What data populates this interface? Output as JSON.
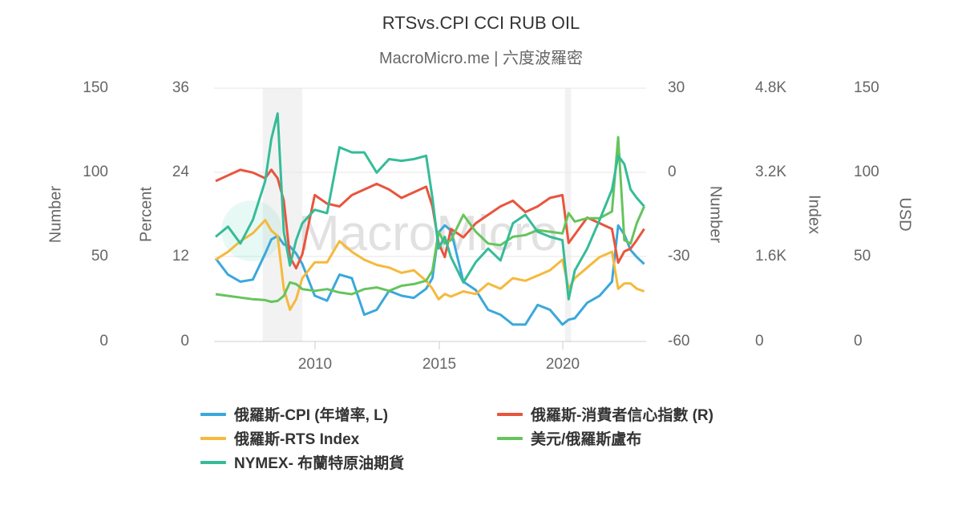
{
  "header": {
    "title": "RTSvs.CPI CCI RUB OIL",
    "subtitle": "MacroMicro.me | 六度波羅密"
  },
  "watermark": "MacroMicro",
  "axes": {
    "left_outer": {
      "title": "Number",
      "ticks": [
        "150",
        "100",
        "50",
        "0"
      ]
    },
    "left_inner": {
      "title": "Percent",
      "ticks": [
        "36",
        "24",
        "12",
        "0"
      ]
    },
    "right_inner": {
      "title": "Number",
      "ticks": [
        "30",
        "0",
        "-30",
        "-60"
      ]
    },
    "right_middle": {
      "title": "Index",
      "ticks": [
        "4.8K",
        "3.2K",
        "1.6K",
        "0"
      ]
    },
    "right_outer": {
      "title": "USD",
      "ticks": [
        "150",
        "100",
        "50",
        "0"
      ]
    },
    "x": {
      "ticks": [
        "2010",
        "2015",
        "2020"
      ]
    }
  },
  "legend": {
    "items": [
      {
        "label": "俄羅斯-CPI (年增率, L)",
        "color": "#3aa8dc"
      },
      {
        "label": "俄羅斯-消費者信心指數 (R)",
        "color": "#e8553e"
      },
      {
        "label": "俄羅斯-RTS Index",
        "color": "#f5b93c"
      },
      {
        "label": "美元/俄羅斯盧布",
        "color": "#66c45c"
      },
      {
        "label": "NYMEX- 布蘭特原油期貨",
        "color": "#35bc98"
      }
    ]
  },
  "chart_data": {
    "type": "line",
    "title": "RTSvs.CPI CCI RUB OIL",
    "subtitle": "MacroMicro.me | 六度波羅密",
    "xlabel": "",
    "x_range": [
      2006.0,
      2023.4
    ],
    "x_ticks": [
      2010,
      2015,
      2020
    ],
    "recession_bands": [
      [
        2007.9,
        2009.5
      ],
      [
        2020.1,
        2020.35
      ]
    ],
    "grid": true,
    "legend_position": "bottom",
    "y_axes": [
      {
        "id": "number_left",
        "title": "Number",
        "range": [
          0,
          150
        ],
        "side": "left"
      },
      {
        "id": "percent",
        "title": "Percent",
        "range": [
          0,
          36
        ],
        "side": "left"
      },
      {
        "id": "number_right",
        "title": "Number",
        "range": [
          -60,
          30
        ],
        "side": "right"
      },
      {
        "id": "index",
        "title": "Index",
        "range": [
          0,
          4800
        ],
        "side": "right"
      },
      {
        "id": "usd",
        "title": "USD",
        "range": [
          0,
          150
        ],
        "side": "right"
      }
    ],
    "x": [
      2006.0,
      2006.5,
      2007.0,
      2007.5,
      2008.0,
      2008.25,
      2008.5,
      2008.75,
      2009.0,
      2009.25,
      2009.5,
      2010.0,
      2010.5,
      2011.0,
      2011.5,
      2012.0,
      2012.5,
      2013.0,
      2013.5,
      2014.0,
      2014.5,
      2014.75,
      2015.0,
      2015.25,
      2015.5,
      2016.0,
      2016.5,
      2017.0,
      2017.5,
      2018.0,
      2018.5,
      2019.0,
      2019.5,
      2020.0,
      2020.25,
      2020.5,
      2021.0,
      2021.5,
      2022.0,
      2022.25,
      2022.5,
      2022.75,
      2023.0,
      2023.3
    ],
    "series": [
      {
        "name": "俄羅斯-CPI (年增率, L)",
        "axis": "percent",
        "color": "#3aa8dc",
        "values": [
          11.8,
          9.5,
          8.5,
          8.8,
          12.5,
          14.5,
          15.0,
          13.8,
          13.5,
          12.5,
          11.0,
          6.5,
          5.8,
          9.5,
          9.0,
          3.8,
          4.5,
          7.2,
          6.5,
          6.2,
          7.5,
          9.0,
          15.5,
          16.5,
          15.8,
          8.5,
          7.3,
          4.5,
          3.8,
          2.4,
          2.4,
          5.2,
          4.5,
          2.4,
          3.1,
          3.3,
          5.5,
          6.5,
          8.5,
          16.5,
          15.2,
          13.0,
          12.0,
          11.0
        ]
      },
      {
        "name": "俄羅斯-消費者信心指數 (R)",
        "axis": "number_right",
        "color": "#e8553e",
        "values": [
          -3,
          -1,
          1,
          0,
          -2,
          1,
          -2,
          -10,
          -30,
          -34,
          -29,
          -8,
          -11,
          -12,
          -8,
          -6,
          -4,
          -6,
          -9,
          -7,
          -5,
          -12,
          -25,
          -30,
          -20,
          -23,
          -18,
          -15,
          -12,
          -10,
          -14,
          -12,
          -9,
          -8,
          -25,
          -22,
          -16,
          -18,
          -20,
          -32,
          -28,
          -27,
          -24,
          -20
        ]
      },
      {
        "name": "俄羅斯-RTS Index",
        "axis": "index",
        "color": "#f5b93c",
        "values": [
          1550,
          1700,
          1900,
          2050,
          2300,
          2100,
          2000,
          1000,
          600,
          800,
          1200,
          1500,
          1500,
          1900,
          1700,
          1550,
          1450,
          1400,
          1300,
          1350,
          1150,
          1000,
          800,
          900,
          850,
          950,
          900,
          1100,
          1000,
          1200,
          1150,
          1250,
          1350,
          1550,
          1000,
          1200,
          1400,
          1600,
          1700,
          1000,
          1100,
          1100,
          1000,
          950
        ]
      },
      {
        "name": "美元/俄羅斯盧布",
        "axis": "usd",
        "color": "#66c45c",
        "values": [
          28,
          27,
          26,
          25,
          24.5,
          23.5,
          24,
          27,
          35,
          34,
          31,
          30,
          31,
          29,
          28,
          31,
          32,
          30,
          33,
          34,
          36,
          42,
          65,
          58,
          60,
          75,
          65,
          58,
          57,
          62,
          63,
          66,
          65,
          64,
          76,
          71,
          73,
          73,
          77,
          121,
          60,
          58,
          70,
          80
        ]
      },
      {
        "name": "NYMEX- 布蘭特原油期貨",
        "axis": "number_left",
        "color": "#35bc98",
        "values": [
          62,
          68,
          58,
          72,
          95,
          120,
          135,
          65,
          45,
          60,
          70,
          78,
          76,
          115,
          112,
          112,
          100,
          108,
          107,
          108,
          110,
          85,
          55,
          62,
          50,
          35,
          47,
          55,
          48,
          70,
          75,
          65,
          62,
          60,
          25,
          42,
          55,
          72,
          90,
          110,
          105,
          90,
          85,
          80
        ]
      }
    ]
  }
}
